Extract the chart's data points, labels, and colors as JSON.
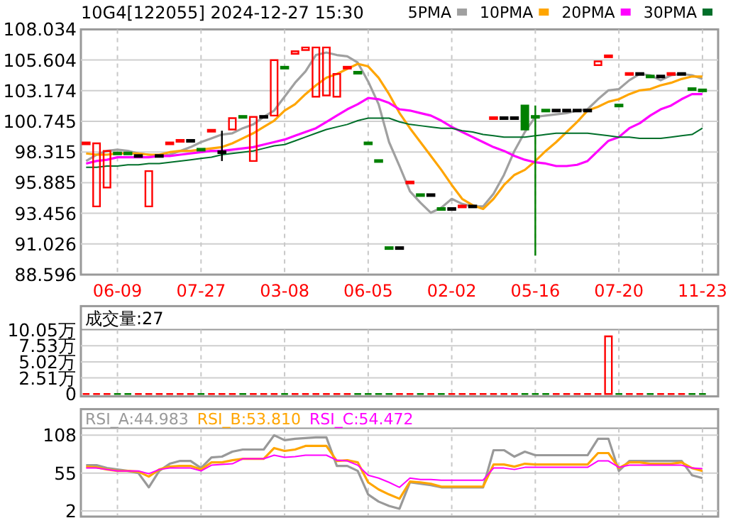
{
  "chart_data": [
    {
      "type": "candlestick",
      "title": "10G4[122055] 2024-12-27 15:30",
      "categories": [
        null,
        null,
        null,
        "06-09",
        null,
        null,
        null,
        null,
        null,
        null,
        null,
        "07-27",
        null,
        null,
        null,
        null,
        null,
        null,
        null,
        "03-08",
        null,
        null,
        null,
        null,
        null,
        null,
        null,
        "06-05",
        null,
        null,
        null,
        null,
        null,
        null,
        null,
        "02-02",
        null,
        null,
        null,
        null,
        null,
        null,
        null,
        "05-16",
        null,
        null,
        null,
        null,
        null,
        null,
        null,
        "07-20",
        null,
        null,
        null,
        null,
        null,
        null,
        null,
        "11-23"
      ],
      "ohlc": [
        [
          99.0,
          99.0,
          99.0,
          99.0
        ],
        [
          94.0,
          99.0,
          94.0,
          99.0
        ],
        [
          95.5,
          98.4,
          95.5,
          98.4
        ],
        [
          98.2,
          98.2,
          98.2,
          98.2
        ],
        [
          98.2,
          98.2,
          98.2,
          98.2
        ],
        [
          98.0,
          98.0,
          98.0,
          98.0
        ],
        [
          94.0,
          96.8,
          94.0,
          96.8
        ],
        [
          98.0,
          98.0,
          98.0,
          98.0
        ],
        [
          99.0,
          99.0,
          99.0,
          99.0
        ],
        [
          99.2,
          99.2,
          99.2,
          99.2
        ],
        [
          99.2,
          99.2,
          99.2,
          99.2
        ],
        [
          98.5,
          98.5,
          98.5,
          98.5
        ],
        [
          100.0,
          100.0,
          100.0,
          100.0
        ],
        [
          98.3,
          100.0,
          97.6,
          98.3
        ],
        [
          100.1,
          101.0,
          100.1,
          101.0
        ],
        [
          101.1,
          101.1,
          101.1,
          101.1
        ],
        [
          97.6,
          101.1,
          97.6,
          101.1
        ],
        [
          101.1,
          101.1,
          101.1,
          101.1
        ],
        [
          101.2,
          105.6,
          101.2,
          105.6
        ],
        [
          105.0,
          105.0,
          105.0,
          105.0
        ],
        [
          106.1,
          106.3,
          106.1,
          106.3
        ],
        [
          106.4,
          106.6,
          106.4,
          106.6
        ],
        [
          102.7,
          106.6,
          102.7,
          106.6
        ],
        [
          102.8,
          106.6,
          102.8,
          106.6
        ],
        [
          102.7,
          104.5,
          102.7,
          104.5
        ],
        [
          105.0,
          105.0,
          105.0,
          105.0
        ],
        [
          104.6,
          104.6,
          104.6,
          104.6
        ],
        [
          99.0,
          99.0,
          99.0,
          99.0
        ],
        [
          97.6,
          97.6,
          97.6,
          97.6
        ],
        [
          90.7,
          90.7,
          90.7,
          90.7
        ],
        [
          90.7,
          90.7,
          90.7,
          90.7
        ],
        [
          95.9,
          95.9,
          95.9,
          95.9
        ],
        [
          94.9,
          94.9,
          94.9,
          94.9
        ],
        [
          94.9,
          94.9,
          94.9,
          94.9
        ],
        [
          93.8,
          93.8,
          93.8,
          93.8
        ],
        [
          93.8,
          93.8,
          93.8,
          93.8
        ],
        [
          94.0,
          94.0,
          94.0,
          94.0
        ],
        [
          94.0,
          94.0,
          94.0,
          94.0
        ],
        null,
        [
          101.0,
          101.0,
          101.0,
          101.0
        ],
        [
          101.0,
          101.0,
          101.0,
          101.0
        ],
        [
          101.0,
          101.0,
          101.0,
          101.0
        ],
        [
          102.0,
          102.0,
          100.1,
          100.1
        ],
        [
          101.1,
          102.0,
          90.1,
          101.1
        ],
        [
          101.6,
          101.6,
          101.6,
          101.6
        ],
        [
          101.6,
          101.6,
          101.6,
          101.6
        ],
        [
          101.6,
          101.6,
          101.6,
          101.6
        ],
        [
          101.6,
          101.6,
          101.6,
          101.6
        ],
        [
          101.6,
          101.6,
          101.6,
          101.6
        ],
        [
          105.2,
          105.5,
          105.2,
          105.5
        ],
        [
          105.9,
          105.9,
          105.9,
          105.9
        ],
        [
          102.0,
          102.0,
          102.0,
          102.0
        ],
        [
          104.5,
          104.5,
          104.5,
          104.5
        ],
        [
          104.5,
          104.5,
          104.5,
          104.5
        ],
        [
          104.3,
          104.3,
          104.3,
          104.3
        ],
        [
          104.3,
          104.3,
          104.3,
          104.3
        ],
        [
          104.5,
          104.5,
          104.5,
          104.5
        ],
        [
          104.5,
          104.5,
          104.5,
          104.5
        ],
        [
          103.3,
          103.3,
          103.3,
          103.3
        ],
        [
          103.2,
          103.2,
          103.2,
          103.2
        ]
      ],
      "colors": [
        "#ff0000",
        "#ff0000",
        "#ff0000",
        "#008000",
        "#008000",
        "#000000",
        "#ff0000",
        "#000000",
        "#ff0000",
        "#ff0000",
        "#000000",
        "#008000",
        "#ff0000",
        "#000000",
        "#ff0000",
        "#008000",
        "#ff0000",
        "#000000",
        "#ff0000",
        "#008000",
        "#ff0000",
        "#ff0000",
        "#ff0000",
        "#ff0000",
        "#ff0000",
        "#ff0000",
        "#008000",
        "#008000",
        "#008000",
        "#008000",
        "#000000",
        "#ff0000",
        "#008000",
        "#000000",
        "#008000",
        "#000000",
        "#ff0000",
        "#000000",
        null,
        "#ff0000",
        "#000000",
        "#000000",
        "#008000",
        "#008000",
        "#008000",
        "#000000",
        "#000000",
        "#000000",
        "#000000",
        "#ff0000",
        "#ff0000",
        "#008000",
        "#ff0000",
        "#000000",
        "#008000",
        "#000000",
        "#ff0000",
        "#000000",
        "#008000",
        "#008000"
      ],
      "series": [
        {
          "name": "5PMA",
          "type": "line",
          "color": "#a0a0a0",
          "values": [
            97.6,
            98.1,
            98.4,
            98.5,
            98.4,
            98.2,
            98.1,
            98.0,
            98.1,
            98.4,
            98.7,
            99.1,
            99.4,
            99.7,
            99.8,
            100.2,
            100.5,
            101.1,
            101.6,
            102.7,
            103.8,
            104.7,
            106.0,
            106.2,
            106.0,
            105.9,
            105.4,
            103.9,
            102.1,
            99.1,
            97.2,
            95.2,
            94.3,
            93.5,
            93.9,
            94.6,
            94.2,
            94.0,
            94.0,
            95.0,
            96.5,
            98.4,
            99.9,
            101.1,
            101.2,
            101.3,
            101.4,
            101.6,
            101.7,
            102.5,
            103.2,
            103.3,
            104.0,
            104.5,
            104.4,
            104.0,
            104.4,
            104.5,
            104.4,
            104.1
          ]
        },
        {
          "name": "10PMA",
          "type": "line",
          "color": "#ffa500",
          "values": [
            98.2,
            98.1,
            98.1,
            98.2,
            98.2,
            98.2,
            98.1,
            98.1,
            98.3,
            98.4,
            98.4,
            98.5,
            98.6,
            98.7,
            99.0,
            99.4,
            99.8,
            100.3,
            100.8,
            101.6,
            102.1,
            102.9,
            103.6,
            104.2,
            104.5,
            104.9,
            105.3,
            105.1,
            104.2,
            102.9,
            101.4,
            100.2,
            99.1,
            98.0,
            96.9,
            95.7,
            94.6,
            94.1,
            93.8,
            94.6,
            95.7,
            96.5,
            96.9,
            97.6,
            98.4,
            99.1,
            99.9,
            100.7,
            101.6,
            101.9,
            102.3,
            102.5,
            102.9,
            103.2,
            103.3,
            103.6,
            103.8,
            104.1,
            104.3,
            104.3
          ]
        },
        {
          "name": "20PMA",
          "type": "line",
          "color": "#ff00ff",
          "values": [
            97.4,
            97.6,
            97.7,
            97.9,
            97.9,
            97.9,
            97.9,
            98.0,
            98.0,
            98.1,
            98.2,
            98.3,
            98.4,
            98.4,
            98.5,
            98.6,
            98.7,
            98.9,
            99.1,
            99.3,
            99.6,
            99.9,
            100.2,
            100.7,
            101.2,
            101.7,
            102.1,
            102.6,
            102.5,
            102.2,
            101.7,
            101.6,
            101.4,
            101.2,
            100.8,
            100.3,
            99.9,
            99.5,
            99.1,
            98.7,
            98.4,
            98.0,
            97.7,
            97.5,
            97.4,
            97.2,
            97.2,
            97.3,
            97.6,
            98.4,
            99.2,
            99.5,
            100.2,
            100.6,
            101.2,
            101.7,
            102.0,
            102.5,
            102.9,
            102.9
          ]
        },
        {
          "name": "30PMA",
          "type": "line",
          "color": "#006f2a",
          "values": [
            97.1,
            97.1,
            97.2,
            97.2,
            97.3,
            97.3,
            97.4,
            97.4,
            97.5,
            97.6,
            97.7,
            97.8,
            97.9,
            98.1,
            98.2,
            98.3,
            98.4,
            98.6,
            98.8,
            98.9,
            99.2,
            99.5,
            99.8,
            100.1,
            100.3,
            100.5,
            100.8,
            101.0,
            101.0,
            101.0,
            100.7,
            100.5,
            100.4,
            100.3,
            100.2,
            100.2,
            100.0,
            99.9,
            99.7,
            99.6,
            99.5,
            99.5,
            99.5,
            99.6,
            99.7,
            99.8,
            99.8,
            99.8,
            99.8,
            99.7,
            99.6,
            99.5,
            99.5,
            99.4,
            99.4,
            99.4,
            99.5,
            99.6,
            99.7,
            100.2
          ]
        }
      ],
      "legend": "top right",
      "ylim": [
        88.596,
        108.034
      ],
      "yticks": [
        88.596,
        91.026,
        93.456,
        95.885,
        98.315,
        100.745,
        103.174,
        105.604,
        108.034
      ],
      "grid": true
    },
    {
      "type": "bar",
      "categories": [
        null,
        null,
        null,
        null,
        null,
        null,
        null,
        null,
        null,
        null,
        null,
        null,
        null,
        null,
        null,
        null,
        null,
        null,
        null,
        null,
        null,
        null,
        null,
        null,
        null,
        null,
        null,
        null,
        null,
        null,
        null,
        null,
        null,
        null,
        null,
        null,
        null,
        null,
        null,
        null,
        null,
        null,
        null,
        null,
        null,
        null,
        null,
        null,
        null,
        null,
        null,
        null,
        null,
        null,
        null,
        null,
        null,
        null,
        null,
        null
      ],
      "values": [
        0,
        0,
        0,
        0,
        0,
        0,
        0,
        0,
        0,
        0,
        0,
        0,
        0,
        0,
        0,
        0,
        0,
        0,
        0,
        0,
        0,
        0,
        0,
        0,
        0,
        0,
        0,
        0,
        0,
        0,
        0,
        0,
        0,
        0,
        0,
        0,
        0,
        0,
        0,
        0,
        0,
        0,
        0,
        0,
        0,
        0,
        0,
        0,
        0,
        0,
        9.0,
        0,
        0,
        0,
        0,
        0,
        0,
        0,
        0,
        0
      ],
      "colors": [
        "#ff0000",
        "#ff0000",
        "#ff0000",
        "#008000",
        "#008000",
        "#ff0000",
        "#ff0000",
        "#ff0000",
        "#ff0000",
        "#ff0000",
        "#ff0000",
        "#008000",
        "#ff0000",
        "#ff0000",
        "#ff0000",
        "#008000",
        "#ff0000",
        "#ff0000",
        "#ff0000",
        "#008000",
        "#ff0000",
        "#ff0000",
        "#ff0000",
        "#ff0000",
        "#ff0000",
        "#ff0000",
        "#008000",
        "#008000",
        "#008000",
        "#008000",
        "#ff0000",
        "#ff0000",
        "#008000",
        "#ff0000",
        "#008000",
        "#ff0000",
        "#ff0000",
        "#ff0000",
        "#ff0000",
        "#ff0000",
        "#ff0000",
        "#ff0000",
        "#008000",
        "#008000",
        "#008000",
        "#ff0000",
        "#ff0000",
        "#ff0000",
        "#ff0000",
        "#ff0000",
        "#ff0000",
        "#008000",
        "#ff0000",
        "#ff0000",
        "#008000",
        "#ff0000",
        "#ff0000",
        "#ff0000",
        "#008000",
        "#008000"
      ],
      "ylim": [
        0,
        10.05
      ],
      "yticks": [
        0,
        {
          "value": 2.51,
          "label": "2.51万"
        },
        {
          "value": 5.02,
          "label": "5.02万"
        },
        {
          "value": 7.53,
          "label": "7.53万"
        },
        {
          "value": 10.05,
          "label": "10.05万"
        }
      ],
      "grid": true,
      "tick_labels": "y",
      "annotations": [
        "成交量:27"
      ]
    },
    {
      "type": "line",
      "categories": [
        null,
        null,
        null,
        null,
        null,
        null,
        null,
        null,
        null,
        null,
        null,
        null,
        null,
        null,
        null,
        null,
        null,
        null,
        null,
        null,
        null,
        null,
        null,
        null,
        null,
        null,
        null,
        null,
        null,
        null,
        null,
        null,
        null,
        null,
        null,
        null,
        null,
        null,
        null,
        null,
        null,
        null,
        null,
        null,
        null,
        null,
        null,
        null,
        null,
        null,
        null,
        null,
        null,
        null,
        null,
        null,
        null,
        null,
        null,
        null
      ],
      "series": [
        {
          "name": "RSI_A:44.983",
          "color": "#999999",
          "values": [
            66,
            66,
            62,
            60,
            58,
            55,
            35,
            58,
            68,
            72,
            72,
            62,
            77,
            78,
            85,
            88,
            88,
            88,
            108,
            101,
            103,
            104,
            105,
            105,
            65,
            65,
            58,
            25,
            15,
            9,
            5,
            42,
            40,
            38,
            35,
            35,
            35,
            35,
            35,
            87,
            87,
            78,
            85,
            80,
            80,
            80,
            80,
            80,
            80,
            103,
            103,
            58,
            72,
            72,
            72,
            72,
            72,
            72,
            52,
            48
          ]
        },
        {
          "name": "RSI_B:53.810",
          "color": "#ffa500",
          "values": [
            64,
            63,
            60,
            58,
            58,
            57,
            50,
            60,
            64,
            65,
            65,
            60,
            70,
            70,
            73,
            75,
            75,
            75,
            90,
            86,
            88,
            93,
            93,
            93,
            72,
            73,
            70,
            42,
            32,
            25,
            19,
            43,
            42,
            40,
            36,
            36,
            36,
            36,
            36,
            67,
            67,
            64,
            68,
            67,
            67,
            67,
            67,
            67,
            67,
            83,
            83,
            62,
            70,
            70,
            68,
            68,
            68,
            70,
            62,
            58
          ]
        },
        {
          "name": "RSI_C:54.472",
          "color": "#ff00ff",
          "values": [
            62,
            62,
            60,
            58,
            58,
            58,
            54,
            60,
            62,
            62,
            62,
            58,
            66,
            67,
            68,
            75,
            75,
            75,
            80,
            77,
            78,
            80,
            80,
            80,
            73,
            72,
            66,
            52,
            48,
            42,
            35,
            48,
            46,
            46,
            45,
            45,
            45,
            45,
            45,
            62,
            62,
            60,
            63,
            63,
            63,
            63,
            63,
            63,
            63,
            72,
            72,
            63,
            66,
            66,
            66,
            66,
            66,
            66,
            62,
            61
          ]
        }
      ],
      "legend": "top left",
      "ylim": [
        -5,
        117.9
      ],
      "yticks": [
        2,
        55,
        108
      ],
      "grid": true,
      "tick_labels": "y"
    }
  ]
}
